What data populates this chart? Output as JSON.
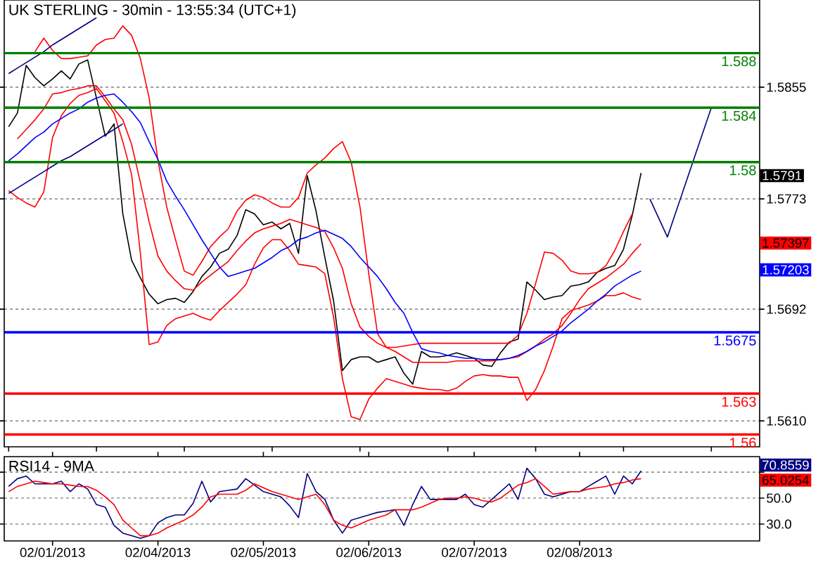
{
  "chart_data": [
    {
      "type": "line",
      "title": "UK STERLING - 30min - 13:55:34 (UTC+1)",
      "categories": [
        null,
        null,
        null,
        null,
        null,
        null,
        null,
        null,
        null,
        null,
        null,
        null,
        null,
        null,
        null,
        null,
        null,
        null,
        null,
        null,
        null,
        null,
        null,
        null,
        null,
        null,
        null,
        null,
        null,
        null,
        null,
        null,
        null,
        null,
        null,
        null,
        null,
        null,
        null,
        null,
        null,
        null,
        null,
        null,
        null,
        null,
        null,
        null,
        null,
        null,
        null,
        null,
        null,
        null,
        null,
        null,
        null,
        null,
        null,
        null,
        null,
        null,
        null,
        null,
        null,
        null,
        null,
        null,
        null,
        null,
        null,
        null,
        null,
        null,
        null,
        null,
        null,
        null,
        null,
        null,
        null,
        null,
        null,
        null,
        null,
        null
      ],
      "ylim": [
        1.5591,
        1.5919
      ],
      "yticks": [
        {
          "value": 1.561,
          "label": "1.5610"
        },
        1.5692,
        1.5773,
        1.5855
      ],
      "grid": "y",
      "ref_lines": [
        {
          "axis": "y",
          "value": 1.588,
          "label": "1.588",
          "color": "#008000"
        },
        {
          "axis": "y",
          "value": 1.584,
          "label": "1.584",
          "color": "#008000"
        },
        {
          "axis": "y",
          "value": 1.58,
          "label": "1.58",
          "color": "#008000"
        },
        {
          "axis": "y",
          "value": 1.5675,
          "label": "1.5675",
          "color": "#0000ff"
        },
        {
          "axis": "y",
          "value": 1.563,
          "label": "1.563",
          "color": "#ff0000"
        },
        {
          "axis": "y",
          "value": 1.56,
          "label": "1.56",
          "color": "#ff0000"
        }
      ],
      "annotations": [
        "1.5791",
        "1.57397",
        "1.57203"
      ],
      "series": [
        {
          "color": "#000000",
          "values": [
            1.5826,
            1.5836,
            1.5871,
            1.5862,
            1.5856,
            1.5861,
            1.5867,
            1.5861,
            1.5872,
            1.5875,
            1.5847,
            1.5819,
            1.5828,
            1.5762,
            1.5728,
            1.5715,
            1.5703,
            1.5696,
            1.5699,
            1.57,
            1.5697,
            1.5705,
            1.5716,
            1.5723,
            1.5733,
            1.5736,
            1.5746,
            1.5765,
            1.5762,
            1.5754,
            1.5756,
            1.5751,
            1.5755,
            1.5733,
            1.579,
            1.5764,
            1.573,
            1.5698,
            1.5647,
            1.5655,
            1.5657,
            1.5657,
            1.5653,
            1.5655,
            1.5657,
            1.5645,
            1.5637,
            1.5661,
            1.5657,
            1.5657,
            1.5658,
            1.566,
            1.5658,
            1.5656,
            1.5651,
            1.565,
            1.566,
            1.5668,
            1.567,
            1.5712,
            1.5706,
            1.5699,
            1.5701,
            1.5702,
            1.5709,
            1.571,
            1.5712,
            1.5719,
            1.5722,
            1.5724,
            1.5736,
            1.5761,
            1.5792,
            null,
            null,
            null,
            null,
            null,
            null,
            null,
            null,
            null,
            null,
            null,
            null,
            null
          ]
        },
        {
          "color": "#ff0000",
          "values": [
            null,
            null,
            null,
            1.5881,
            1.5891,
            1.5882,
            1.5876,
            1.5876,
            1.5877,
            1.5878,
            1.5886,
            1.589,
            1.5891,
            1.59,
            1.5893,
            1.5876,
            1.5847,
            1.5801,
            1.5767,
            1.5743,
            1.572,
            1.5717,
            1.5727,
            1.5738,
            1.5745,
            1.5751,
            1.5764,
            1.5772,
            1.5776,
            1.5774,
            1.577,
            1.5767,
            1.5767,
            1.5774,
            1.5792,
            1.5798,
            1.5803,
            1.581,
            1.5815,
            1.58,
            1.5767,
            1.5718,
            1.5674,
            1.5664,
            1.5664,
            1.5665,
            1.5666,
            1.5667,
            1.5667,
            1.5667,
            1.5667,
            1.5667,
            1.5667,
            1.5667,
            1.5667,
            1.5667,
            1.5667,
            1.5667,
            1.5673,
            1.5689,
            1.5711,
            1.5734,
            1.5733,
            1.5728,
            1.572,
            1.5718,
            1.5718,
            1.5719,
            1.5724,
            1.5735,
            1.5749,
            1.5762,
            null,
            null,
            null,
            null,
            null,
            null,
            null,
            null,
            null,
            null,
            null,
            null,
            null,
            null
          ]
        },
        {
          "color": "#ff0000",
          "values": [
            null,
            1.5817,
            1.5824,
            1.5831,
            1.5839,
            1.585,
            1.5851,
            1.5853,
            1.5854,
            1.5856,
            1.5856,
            1.5848,
            1.5839,
            1.5831,
            1.5813,
            1.5785,
            1.5756,
            1.5731,
            1.572,
            1.5713,
            1.5707,
            1.5706,
            1.5712,
            1.5717,
            1.5722,
            1.5727,
            1.5735,
            1.5742,
            1.5748,
            1.5751,
            1.5753,
            1.5755,
            1.5758,
            1.5756,
            1.5754,
            1.5752,
            1.5749,
            1.5737,
            1.5722,
            1.5696,
            1.5679,
            1.5672,
            1.5667,
            1.5664,
            1.5661,
            1.5657,
            1.5653,
            1.5653,
            1.5653,
            1.5653,
            1.5653,
            1.5654,
            1.5654,
            1.5654,
            1.5654,
            1.5654,
            1.5655,
            1.5656,
            1.5657,
            1.5661,
            1.5665,
            1.567,
            1.5674,
            1.568,
            1.5689,
            1.5699,
            1.5707,
            1.5711,
            1.5715,
            1.572,
            1.5725,
            1.5733,
            1.574,
            null,
            null,
            null,
            null,
            null,
            null,
            null,
            null,
            null,
            null,
            null,
            null,
            null
          ]
        },
        {
          "color": "#ff0000",
          "values": [
            1.5779,
            1.5774,
            1.577,
            1.5767,
            1.5778,
            1.5818,
            1.5834,
            1.5843,
            1.5849,
            1.5851,
            1.5854,
            1.5845,
            1.5836,
            1.5815,
            1.5791,
            1.5733,
            1.5666,
            1.5668,
            1.568,
            1.5685,
            1.5687,
            1.5689,
            1.5686,
            1.5684,
            1.5691,
            1.5697,
            1.5703,
            1.571,
            1.5725,
            1.5737,
            1.5743,
            1.5743,
            1.5735,
            1.5725,
            1.5724,
            1.5723,
            1.5718,
            1.5686,
            1.5641,
            1.5613,
            1.5611,
            1.5626,
            1.5634,
            1.5641,
            1.5639,
            1.5637,
            1.5635,
            1.5634,
            1.5633,
            1.5633,
            1.5632,
            1.5634,
            1.5639,
            1.5643,
            1.5644,
            1.5643,
            1.5643,
            1.5642,
            1.5642,
            1.5625,
            1.5633,
            1.5647,
            1.5665,
            1.5685,
            1.5691,
            1.5693,
            1.5695,
            1.5698,
            1.5702,
            1.5702,
            1.5704,
            1.5701,
            1.5699,
            null,
            null,
            null,
            null,
            null,
            null,
            null,
            null,
            null,
            null,
            null,
            null,
            null
          ]
        },
        {
          "color": "#0000ff",
          "values": [
            1.5801,
            1.5806,
            1.5812,
            1.5818,
            1.5822,
            1.5828,
            1.5832,
            1.5836,
            1.5839,
            1.5844,
            1.5847,
            1.5849,
            1.585,
            1.5844,
            1.5837,
            1.5829,
            1.5815,
            1.5802,
            1.5786,
            1.5775,
            1.5765,
            1.5754,
            1.5743,
            1.5733,
            1.5723,
            1.5716,
            1.5718,
            1.572,
            1.5722,
            1.5726,
            1.573,
            1.5735,
            1.5738,
            1.5743,
            1.5745,
            1.5748,
            1.575,
            1.5747,
            1.5744,
            1.5738,
            1.573,
            1.5723,
            1.5716,
            1.5707,
            1.5697,
            1.5689,
            1.5675,
            1.5663,
            1.5661,
            1.566,
            1.5658,
            1.5657,
            1.5656,
            1.5656,
            1.5655,
            1.5655,
            1.5655,
            1.5656,
            1.5658,
            1.5661,
            1.5665,
            1.5668,
            1.5672,
            1.5676,
            1.5682,
            1.5687,
            1.5692,
            1.5698,
            1.5703,
            1.5709,
            1.5713,
            1.5717,
            1.572,
            null,
            null,
            null,
            null,
            null,
            null,
            null,
            null,
            null,
            null,
            null,
            null,
            null
          ]
        },
        {
          "color": "#000080",
          "values": [
            1.5865,
            1.5869,
            1.5873,
            1.5877,
            1.5881,
            1.5886,
            1.589,
            1.5894,
            1.5898,
            1.5902,
            1.5906,
            null,
            null,
            null,
            null,
            null,
            null,
            null,
            null,
            null,
            null,
            null,
            null,
            null,
            null,
            null,
            null,
            null,
            null,
            null,
            null,
            null,
            null,
            null,
            null,
            null,
            null,
            null,
            null,
            null,
            null,
            null,
            null,
            null,
            null,
            null,
            null,
            null,
            null,
            null,
            null,
            null,
            null,
            null,
            null,
            null,
            null,
            null,
            null,
            null,
            null,
            null,
            null,
            null,
            null,
            null,
            null,
            null,
            null,
            null,
            null,
            null,
            null,
            null,
            null,
            null,
            null,
            null,
            null,
            null,
            null,
            null,
            null,
            null,
            null,
            null
          ]
        },
        {
          "color": "#000080",
          "values": [
            1.5777,
            1.5781,
            1.5785,
            1.5789,
            1.5793,
            1.5797,
            1.5801,
            1.5804,
            1.5808,
            1.5812,
            1.5816,
            1.582,
            1.5824,
            1.5828,
            null,
            null,
            null,
            null,
            null,
            null,
            null,
            null,
            null,
            null,
            null,
            null,
            null,
            null,
            null,
            null,
            null,
            null,
            null,
            null,
            null,
            null,
            null,
            null,
            null,
            null,
            null,
            null,
            null,
            null,
            null,
            null,
            null,
            null,
            null,
            null,
            null,
            null,
            null,
            null,
            null,
            null,
            null,
            null,
            null,
            null,
            null,
            null,
            null,
            null,
            null,
            null,
            null,
            null,
            null,
            null,
            null,
            null,
            null,
            null,
            null,
            null,
            null,
            null,
            null,
            null,
            null,
            null,
            null,
            null,
            null,
            null
          ]
        },
        {
          "color": "#000080",
          "values": [
            null,
            null,
            null,
            null,
            null,
            null,
            null,
            null,
            null,
            null,
            null,
            null,
            null,
            null,
            null,
            null,
            null,
            null,
            null,
            null,
            null,
            null,
            null,
            null,
            null,
            null,
            null,
            null,
            null,
            null,
            null,
            null,
            null,
            null,
            null,
            null,
            null,
            null,
            null,
            null,
            null,
            null,
            null,
            null,
            null,
            null,
            null,
            null,
            null,
            null,
            null,
            null,
            null,
            null,
            null,
            null,
            null,
            null,
            null,
            null,
            null,
            null,
            null,
            null,
            null,
            null,
            null,
            null,
            null,
            null,
            null,
            null,
            null,
            1.5773,
            1.5759,
            1.5745,
            1.5764,
            1.5783,
            1.5802,
            1.5821,
            1.584,
            null,
            null,
            null,
            null,
            null
          ]
        }
      ]
    },
    {
      "type": "line",
      "title": "RSI14 - 9MA",
      "categories": [
        null,
        null,
        null,
        null,
        null,
        "02/01/2013",
        null,
        null,
        null,
        null,
        null,
        null,
        null,
        null,
        null,
        null,
        null,
        "02/04/2013",
        null,
        null,
        null,
        null,
        null,
        null,
        null,
        null,
        null,
        null,
        null,
        "02/05/2013",
        null,
        null,
        null,
        null,
        null,
        null,
        null,
        null,
        null,
        null,
        null,
        "02/06/2013",
        null,
        null,
        null,
        null,
        null,
        null,
        null,
        null,
        null,
        null,
        null,
        "02/07/2013",
        null,
        null,
        null,
        null,
        null,
        null,
        null,
        null,
        null,
        null,
        null,
        "02/08/2013",
        null,
        null,
        null,
        null,
        null,
        null,
        null,
        null,
        null,
        null,
        null,
        null,
        null,
        null,
        null,
        null,
        null,
        null,
        null,
        null
      ],
      "ylim": [
        17,
        82
      ],
      "yticks": [
        {
          "value": 30,
          "label": "30.0"
        },
        {
          "value": 50,
          "label": "50.0"
        },
        {
          "value": 70,
          "label": null
        }
      ],
      "grid": "y",
      "annotations": [
        "70.8559",
        "65.0254"
      ],
      "series": [
        {
          "color": "#000080",
          "values": [
            59,
            65,
            67,
            61,
            61,
            61,
            63,
            55,
            61,
            57,
            45,
            43,
            29,
            23,
            21,
            19,
            21,
            31,
            35,
            37,
            37,
            46,
            63,
            47,
            55,
            56,
            57,
            65,
            60,
            55,
            53,
            51,
            44,
            35,
            69,
            55,
            49,
            33,
            23,
            33,
            35,
            37,
            39,
            40,
            41,
            29,
            45,
            59,
            49,
            49,
            49,
            49,
            53,
            45,
            43,
            49,
            55,
            61,
            49,
            73,
            65,
            53,
            51,
            53,
            55,
            55,
            59,
            63,
            67,
            53,
            67,
            61,
            71,
            null,
            null,
            null,
            null,
            null,
            null,
            null,
            null,
            null,
            null,
            null,
            null,
            null
          ]
        },
        {
          "color": "#ff0000",
          "values": [
            55,
            59,
            61,
            63,
            62,
            61,
            61,
            60,
            59,
            59,
            56,
            51,
            45,
            33,
            27,
            21,
            21,
            23,
            27,
            30,
            33,
            37,
            43,
            51,
            53,
            53,
            53,
            56,
            61,
            58,
            55,
            53,
            51,
            49,
            51,
            53,
            45,
            33,
            29,
            27,
            30,
            33,
            35,
            37,
            41,
            41,
            41,
            43,
            46,
            49,
            50,
            50,
            51,
            50,
            48,
            47,
            50,
            55,
            60,
            62,
            65,
            59,
            53,
            54,
            55,
            55,
            57,
            58,
            59,
            61,
            62,
            64,
            65,
            null,
            null,
            null,
            null,
            null,
            null,
            null,
            null,
            null,
            null,
            null,
            null,
            null
          ]
        }
      ]
    }
  ]
}
